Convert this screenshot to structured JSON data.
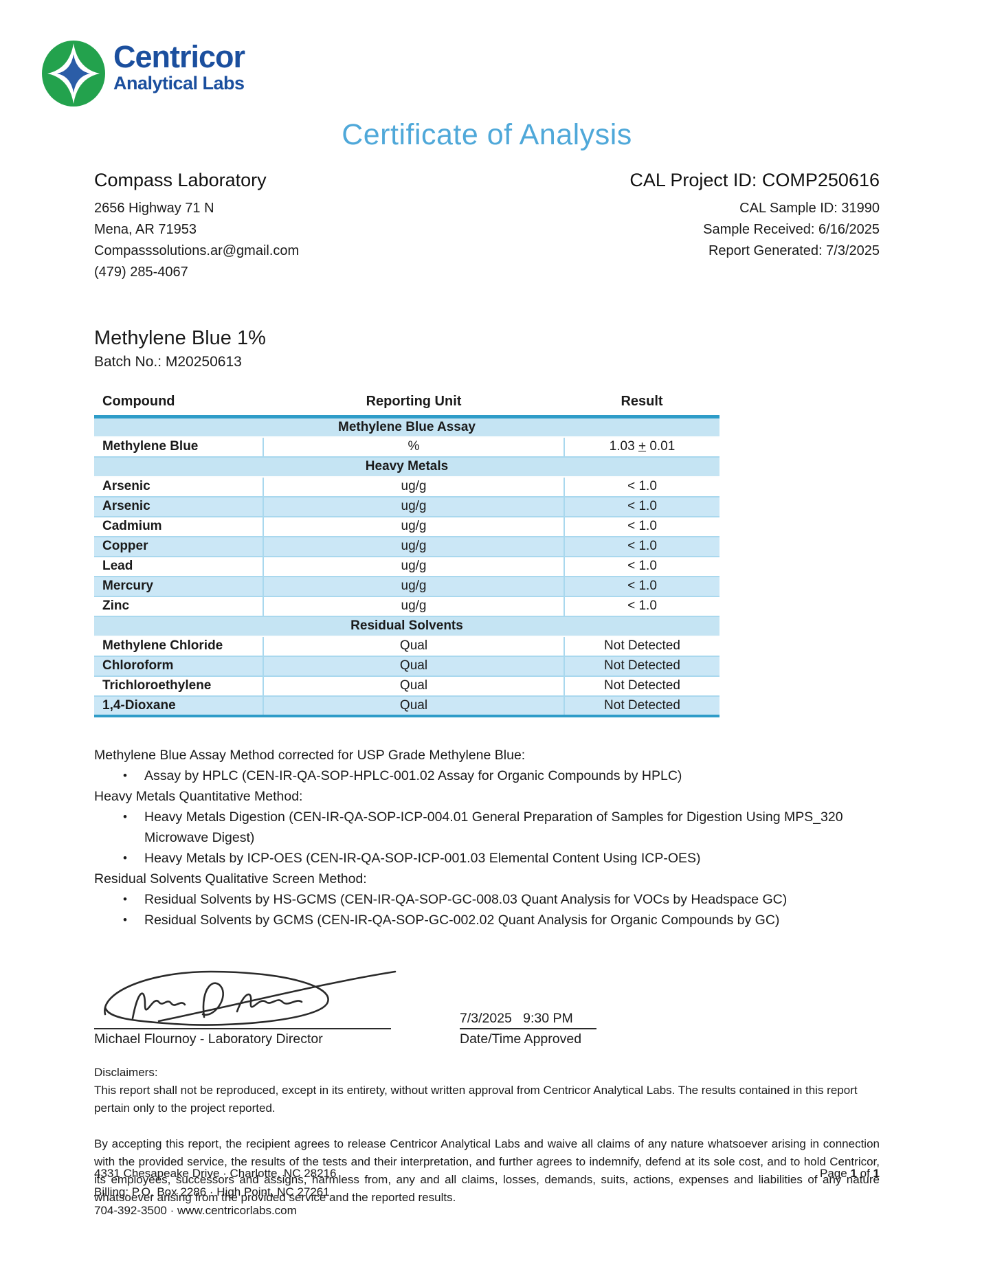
{
  "brand": {
    "name": "Centricor",
    "subtitle": "Analytical Labs",
    "colors": {
      "green": "#23A24D",
      "blue": "#1B4F9E",
      "title_blue": "#4FA8D9",
      "table_accent": "#2E9CC8"
    }
  },
  "title": "Certificate of Analysis",
  "client": {
    "name": "Compass Laboratory",
    "lines": [
      "2656 Highway 71 N",
      "Mena, AR 71953",
      "Compasssolutions.ar@gmail.com",
      "(479) 285-4067"
    ]
  },
  "project": {
    "id_line": "CAL Project ID: COMP250616",
    "lines": [
      "CAL Sample ID: 31990",
      "Sample Received: 6/16/2025",
      "Report Generated: 7/3/2025"
    ]
  },
  "sample": {
    "product": "Methylene Blue 1%",
    "batch": "Batch No.: M20250613"
  },
  "results_table": {
    "headers": [
      "Compound",
      "Reporting Unit",
      "Result"
    ],
    "sections": [
      {
        "title": "Methylene Blue Assay",
        "rows": [
          {
            "compound": "Methylene Blue",
            "unit": "%",
            "result": "1.03 + 0.01",
            "plus_underlined": true
          }
        ]
      },
      {
        "title": "Heavy Metals",
        "rows": [
          {
            "compound": "Arsenic",
            "unit": "ug/g",
            "result": "< 1.0"
          },
          {
            "compound": "Arsenic",
            "unit": "ug/g",
            "result": "< 1.0"
          },
          {
            "compound": "Cadmium",
            "unit": "ug/g",
            "result": "< 1.0"
          },
          {
            "compound": "Copper",
            "unit": "ug/g",
            "result": "< 1.0"
          },
          {
            "compound": "Lead",
            "unit": "ug/g",
            "result": "< 1.0"
          },
          {
            "compound": "Mercury",
            "unit": "ug/g",
            "result": "< 1.0"
          },
          {
            "compound": "Zinc",
            "unit": "ug/g",
            "result": "< 1.0"
          }
        ]
      },
      {
        "title": "Residual Solvents",
        "rows": [
          {
            "compound": "Methylene Chloride",
            "unit": "Qual",
            "result": "Not Detected"
          },
          {
            "compound": "Chloroform",
            "unit": "Qual",
            "result": "Not Detected"
          },
          {
            "compound": "Trichloroethylene",
            "unit": "Qual",
            "result": "Not Detected"
          },
          {
            "compound": "1,4-Dioxane",
            "unit": "Qual",
            "result": "Not Detected"
          }
        ]
      }
    ]
  },
  "bullet_char": "•",
  "methods": [
    {
      "type": "heading",
      "text": "Methylene Blue Assay Method corrected for USP Grade Methylene Blue:"
    },
    {
      "type": "bullet",
      "text": "Assay by HPLC (CEN-IR-QA-SOP-HPLC-001.02 Assay for Organic Compounds by HPLC)"
    },
    {
      "type": "heading",
      "text": "Heavy Metals Quantitative Method:"
    },
    {
      "type": "bullet",
      "text": "Heavy Metals Digestion (CEN-IR-QA-SOP-ICP-004.01 General Preparation of Samples for Digestion Using MPS_320 Microwave Digest)"
    },
    {
      "type": "bullet",
      "text": "Heavy Metals by ICP-OES (CEN-IR-QA-SOP-ICP-001.03 Elemental Content Using ICP-OES)"
    },
    {
      "type": "heading",
      "text": "Residual Solvents Qualitative Screen Method:"
    },
    {
      "type": "bullet",
      "text": "Residual Solvents by HS-GCMS (CEN-IR-QA-SOP-GC-008.03 Quant Analysis for VOCs by Headspace GC)"
    },
    {
      "type": "bullet",
      "text": "Residual Solvents by GCMS (CEN-IR-QA-SOP-GC-002.02 Quant Analysis for Organic Compounds by GC)"
    }
  ],
  "signature": {
    "name_title": "Michael Flournoy - Laboratory Director",
    "datetime": "7/3/2025   9:30 PM",
    "datetime_label": "Date/Time Approved"
  },
  "disclaimers": {
    "heading": "Disclaimers:",
    "p1": "This report shall not be reproduced, except in its entirety, without written approval from Centricor Analytical Labs. The results contained in this report pertain only to the project reported.",
    "p2": "By accepting this report, the recipient agrees to release Centricor Analytical Labs and waive all claims of any nature whatsoever arising in connection with the provided service, the results of the tests and their interpretation, and further agrees to indemnify, defend at its sole cost, and to hold Centricor, its employees, successors and assigns, harmless from, any and all claims, losses, demands, suits, actions, expenses and liabilities of any nature whatsoever arising from the provided service and the reported results."
  },
  "footer": {
    "lines": [
      "4331 Chesapeake Drive · Charlotte, NC 28216",
      "Billing: P.O. Box 2286 · High Point, NC 27261",
      "704-392-3500 · www.centricorlabs.com"
    ],
    "page": {
      "prefix": "Page ",
      "num": "1",
      "mid": " of ",
      "total": "1"
    }
  }
}
